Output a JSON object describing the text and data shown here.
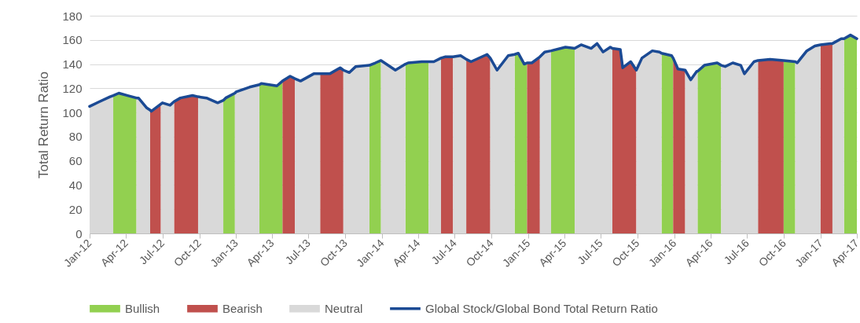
{
  "chart_data": {
    "type": "area",
    "ylabel": "Total Return Ratio",
    "legend": "bottom",
    "grid": "y",
    "xlim": [
      "2012-01",
      "2017-04"
    ],
    "ylim": [
      0,
      180
    ],
    "yticks": [
      0,
      20,
      40,
      60,
      80,
      100,
      120,
      140,
      160,
      180
    ],
    "xticks": [
      {
        "value": "2012-01",
        "label": "Jan-12"
      },
      {
        "value": "2012-04",
        "label": "Apr-12"
      },
      {
        "value": "2012-07",
        "label": "Jul-12"
      },
      {
        "value": "2012-10",
        "label": "Oct-12"
      },
      {
        "value": "2013-01",
        "label": "Jan-13"
      },
      {
        "value": "2013-04",
        "label": "Apr-13"
      },
      {
        "value": "2013-07",
        "label": "Jul-13"
      },
      {
        "value": "2013-10",
        "label": "Oct-13"
      },
      {
        "value": "2014-01",
        "label": "Jan-14"
      },
      {
        "value": "2014-04",
        "label": "Apr-14"
      },
      {
        "value": "2014-07",
        "label": "Jul-14"
      },
      {
        "value": "2014-10",
        "label": "Oct-14"
      },
      {
        "value": "2015-01",
        "label": "Jan-15"
      },
      {
        "value": "2015-04",
        "label": "Apr-15"
      },
      {
        "value": "2015-07",
        "label": "Jul-15"
      },
      {
        "value": "2015-10",
        "label": "Oct-15"
      },
      {
        "value": "2016-01",
        "label": "Jan-16"
      },
      {
        "value": "2016-04",
        "label": "Apr-16"
      },
      {
        "value": "2016-07",
        "label": "Jul-16"
      },
      {
        "value": "2016-10",
        "label": "Oct-16"
      },
      {
        "value": "2017-01",
        "label": "Jan-17"
      },
      {
        "value": "2017-04",
        "label": "Apr-17"
      }
    ],
    "x": [
      "2012-01-01",
      "2012-01-26",
      "2012-02-21",
      "2012-02-29",
      "2012-03-14",
      "2012-04-05",
      "2012-04-27",
      "2012-05-02",
      "2012-05-22",
      "2012-05-31",
      "2012-06-03",
      "2012-06-27",
      "2012-07-01",
      "2012-07-20",
      "2012-07-30",
      "2012-08-15",
      "2012-09-14",
      "2012-09-28",
      "2012-10-19",
      "2012-11-16",
      "2012-11-30",
      "2012-12-06",
      "2012-12-29",
      "2013-01-01",
      "2013-02-04",
      "2013-02-28",
      "2013-03-05",
      "2013-04-13",
      "2013-04-27",
      "2013-05-16",
      "2013-05-28",
      "2013-06-11",
      "2013-07-14",
      "2013-07-30",
      "2013-08-23",
      "2013-09-18",
      "2013-09-26",
      "2013-10-11",
      "2013-10-27",
      "2013-11-30",
      "2013-12-15",
      "2013-12-29",
      "2014-02-03",
      "2014-02-28",
      "2014-03-07",
      "2014-04-10",
      "2014-04-27",
      "2014-05-10",
      "2014-05-28",
      "2014-06-07",
      "2014-06-27",
      "2014-07-16",
      "2014-07-30",
      "2014-08-11",
      "2014-09-20",
      "2014-09-28",
      "2014-10-15",
      "2014-11-12",
      "2014-11-28",
      "2014-12-07",
      "2014-12-22",
      "2014-12-29",
      "2015-01-10",
      "2015-01-30",
      "2015-02-11",
      "2015-02-27",
      "2015-04-04",
      "2015-04-27",
      "2015-05-13",
      "2015-06-07",
      "2015-06-22",
      "2015-07-07",
      "2015-07-25",
      "2015-07-30",
      "2015-08-19",
      "2015-08-25",
      "2015-09-14",
      "2015-09-28",
      "2015-10-12",
      "2015-11-07",
      "2015-11-25",
      "2015-11-30",
      "2015-12-25",
      "2015-12-29",
      "2016-01-10",
      "2016-01-28",
      "2016-02-11",
      "2016-02-26",
      "2016-02-28",
      "2016-03-16",
      "2016-04-17",
      "2016-04-27",
      "2016-05-07",
      "2016-05-26",
      "2016-06-15",
      "2016-06-24",
      "2016-07-18",
      "2016-07-28",
      "2016-08-27",
      "2016-09-30",
      "2016-10-29",
      "2016-11-03",
      "2016-11-27",
      "2016-12-17",
      "2016-12-31",
      "2017-01-25",
      "2017-01-30",
      "2017-02-21",
      "2017-02-28",
      "2017-03-16",
      "2017-04-01"
    ],
    "series": [
      {
        "name": "Bullish",
        "color": "#92d050",
        "values": [
          null,
          null,
          null,
          114,
          116,
          114,
          112,
          null,
          null,
          null,
          null,
          null,
          null,
          null,
          null,
          null,
          null,
          null,
          null,
          null,
          110,
          112,
          116,
          null,
          null,
          123,
          124,
          122,
          126,
          null,
          null,
          null,
          null,
          null,
          null,
          null,
          null,
          null,
          null,
          139,
          141,
          143,
          null,
          140,
          141,
          142,
          142,
          null,
          null,
          null,
          null,
          null,
          null,
          null,
          null,
          null,
          null,
          null,
          148,
          149,
          140,
          141,
          null,
          null,
          null,
          151,
          154,
          153,
          null,
          null,
          null,
          null,
          null,
          null,
          null,
          null,
          null,
          null,
          null,
          null,
          null,
          149,
          147,
          145,
          null,
          null,
          null,
          null,
          134,
          139,
          141,
          139,
          null,
          null,
          null,
          null,
          null,
          null,
          null,
          143,
          142,
          null,
          null,
          null,
          null,
          null,
          null,
          null,
          161,
          164,
          161
        ]
      },
      {
        "name": "Bearish",
        "color": "#c0504d",
        "values": [
          null,
          null,
          null,
          null,
          null,
          null,
          null,
          null,
          null,
          102,
          101,
          107,
          null,
          null,
          109,
          112,
          114,
          113,
          null,
          null,
          null,
          null,
          null,
          null,
          null,
          null,
          null,
          null,
          126,
          130,
          128,
          null,
          null,
          132,
          132,
          137,
          135,
          null,
          null,
          null,
          null,
          null,
          null,
          null,
          null,
          null,
          null,
          null,
          145,
          146,
          146,
          null,
          144,
          142,
          148,
          145,
          null,
          null,
          null,
          null,
          null,
          141,
          141,
          146,
          null,
          null,
          null,
          null,
          null,
          null,
          null,
          null,
          null,
          153,
          152,
          137,
          142,
          135,
          null,
          null,
          null,
          null,
          null,
          145,
          136,
          135,
          null,
          null,
          null,
          null,
          null,
          null,
          null,
          null,
          null,
          null,
          null,
          143,
          144,
          143,
          null,
          null,
          null,
          null,
          156,
          157,
          157,
          null,
          null,
          null,
          null
        ]
      },
      {
        "name": "Neutral",
        "color": "#d9d9d9",
        "values": [
          105,
          109,
          113,
          114,
          null,
          null,
          112,
          112,
          104,
          102,
          null,
          107,
          108,
          106,
          109,
          null,
          null,
          113,
          112,
          108,
          110,
          null,
          116,
          117,
          121,
          123,
          null,
          null,
          null,
          null,
          128,
          126,
          132,
          132,
          null,
          null,
          135,
          133,
          138,
          139,
          null,
          143,
          135,
          140,
          null,
          null,
          142,
          142,
          145,
          null,
          146,
          147,
          144,
          null,
          null,
          145,
          135,
          147,
          148,
          null,
          null,
          null,
          null,
          146,
          150,
          151,
          null,
          153,
          156,
          153,
          157,
          150,
          154,
          153,
          null,
          null,
          null,
          135,
          145,
          151,
          150,
          149,
          null,
          null,
          null,
          135,
          127,
          134,
          134,
          null,
          null,
          139,
          138,
          141,
          139,
          132,
          142,
          143,
          null,
          null,
          142,
          141,
          151,
          155,
          156,
          null,
          157,
          161,
          161,
          null,
          null
        ]
      },
      {
        "name": "Global Stock/Global Bond Total Return Ratio",
        "type": "line",
        "color": "#1b4a94",
        "values": [
          105,
          109,
          113,
          114,
          116,
          114,
          112,
          112,
          104,
          102,
          101,
          107,
          108,
          106,
          109,
          112,
          114,
          113,
          112,
          108,
          110,
          112,
          116,
          117,
          121,
          123,
          124,
          122,
          126,
          130,
          128,
          126,
          132,
          132,
          132,
          137,
          135,
          133,
          138,
          139,
          141,
          143,
          135,
          140,
          141,
          142,
          142,
          142,
          145,
          146,
          146,
          147,
          144,
          142,
          148,
          145,
          135,
          147,
          148,
          149,
          140,
          141,
          141,
          146,
          150,
          151,
          154,
          153,
          156,
          153,
          157,
          150,
          154,
          153,
          152,
          137,
          142,
          135,
          145,
          151,
          150,
          149,
          147,
          145,
          136,
          135,
          127,
          134,
          134,
          139,
          141,
          139,
          138,
          141,
          139,
          132,
          142,
          143,
          144,
          143,
          142,
          141,
          151,
          155,
          156,
          157,
          157,
          161,
          161,
          164,
          161
        ]
      }
    ]
  }
}
